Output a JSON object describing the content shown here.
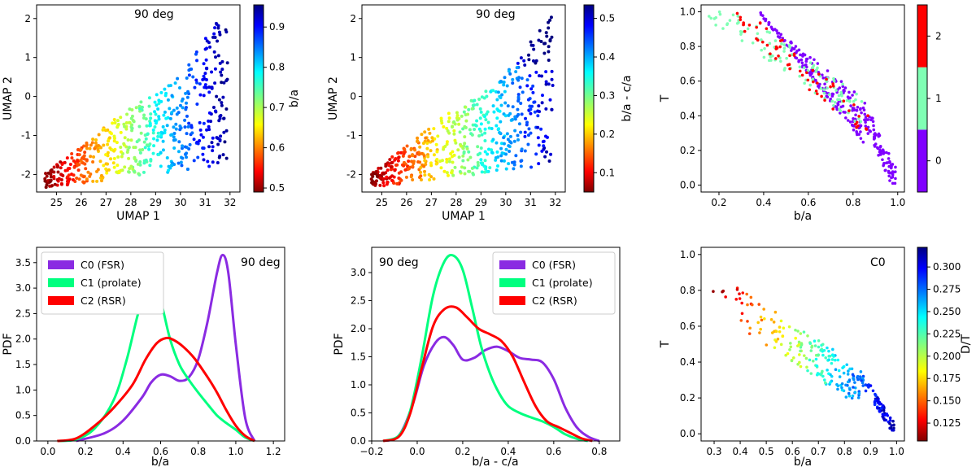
{
  "chart_data": [
    {
      "id": "umap-ba",
      "type": "scatter",
      "annotation": "90 deg",
      "xlabel": "UMAP 1",
      "ylabel": "UMAP 2",
      "xlim": [
        24.2,
        32.4
      ],
      "ylim": [
        -2.45,
        2.35
      ],
      "xticks": [
        25,
        26,
        27,
        28,
        29,
        30,
        31,
        32
      ],
      "yticks": [
        -2,
        -1,
        0,
        1,
        2
      ],
      "colorbar": {
        "label": "b/a",
        "range": [
          0.49,
          0.955
        ],
        "ticks": [
          "0.5",
          "0.6",
          "0.7",
          "0.8",
          "0.9"
        ],
        "cmap": "jet_r"
      },
      "points": {
        "n": 560,
        "x_range": [
          24.5,
          31.9
        ],
        "color_field": "b/a",
        "color_range": [
          0.5,
          0.95
        ],
        "seed": 11
      }
    },
    {
      "id": "umap-ba-ca",
      "type": "scatter",
      "annotation": "90 deg",
      "xlabel": "UMAP 1",
      "ylabel": "UMAP 2",
      "xlim": [
        24.2,
        32.4
      ],
      "ylim": [
        -2.45,
        2.35
      ],
      "xticks": [
        25,
        26,
        27,
        28,
        29,
        30,
        31,
        32
      ],
      "yticks": [
        -2,
        -1,
        0,
        1,
        2
      ],
      "colorbar": {
        "label": "b/a - c/a",
        "range": [
          0.05,
          0.535
        ],
        "ticks": [
          "0.1",
          "0.2",
          "0.3",
          "0.4",
          "0.5"
        ],
        "cmap": "jet_r"
      },
      "points": {
        "n": 560,
        "x_range": [
          24.5,
          31.9
        ],
        "color_field": "b/a - c/a",
        "color_range": [
          0.06,
          0.52
        ],
        "seed": 23
      }
    },
    {
      "id": "t-vs-ba-cluster",
      "type": "scatter",
      "xlabel": "b/a",
      "ylabel": "T",
      "xlim": [
        0.12,
        1.03
      ],
      "ylim": [
        -0.04,
        1.04
      ],
      "xticks": [
        "0.2",
        "0.4",
        "0.6",
        "0.8",
        "1.0"
      ],
      "yticks": [
        "0.0",
        "0.2",
        "0.4",
        "0.6",
        "0.8",
        "1.0"
      ],
      "colorbar": {
        "label": "",
        "categories": [
          "0",
          "1",
          "2"
        ],
        "colors": [
          "#8000ff",
          "#80ffb4",
          "#ff0000"
        ]
      },
      "clusters": [
        {
          "label": "0",
          "n": 260,
          "color": "#8000ff"
        },
        {
          "label": "1",
          "n": 110,
          "color": "#80ffb4"
        },
        {
          "label": "2",
          "n": 60,
          "color": "#ff0000"
        }
      ]
    },
    {
      "id": "pdf-ba",
      "type": "line",
      "annotation": "90 deg",
      "xlabel": "b/a",
      "ylabel": "PDF",
      "xlim": [
        -0.06,
        1.26
      ],
      "ylim": [
        0,
        3.8
      ],
      "xticks": [
        "0.0",
        "0.2",
        "0.4",
        "0.6",
        "0.8",
        "1.0",
        "1.2"
      ],
      "yticks": [
        "0.0",
        "0.5",
        "1.0",
        "1.5",
        "2.0",
        "2.5",
        "3.0",
        "3.5"
      ],
      "legend": "top-left",
      "series": [
        {
          "name": "C0 (FSR)",
          "color": "#8a2be2",
          "x": [
            0.15,
            0.3,
            0.4,
            0.5,
            0.55,
            0.6,
            0.65,
            0.7,
            0.75,
            0.8,
            0.85,
            0.9,
            0.93,
            0.96,
            1.0,
            1.05,
            1.1
          ],
          "y": [
            0,
            0.15,
            0.4,
            0.85,
            1.15,
            1.3,
            1.27,
            1.18,
            1.25,
            1.6,
            2.35,
            3.3,
            3.65,
            3.3,
            1.9,
            0.45,
            0
          ]
        },
        {
          "name": "C1 (prolate)",
          "color": "#00ff7f",
          "x": [
            0.05,
            0.15,
            0.25,
            0.35,
            0.42,
            0.48,
            0.52,
            0.56,
            0.6,
            0.65,
            0.7,
            0.75,
            0.8,
            0.85,
            0.9,
            0.95,
            1.0,
            1.05,
            1.1
          ],
          "y": [
            0,
            0.03,
            0.25,
            0.8,
            1.6,
            2.5,
            2.9,
            3.0,
            2.75,
            2.0,
            1.5,
            1.2,
            0.95,
            0.72,
            0.5,
            0.35,
            0.22,
            0.07,
            0
          ]
        },
        {
          "name": "C2 (RSR)",
          "color": "#ff0000",
          "x": [
            0.05,
            0.15,
            0.25,
            0.35,
            0.45,
            0.52,
            0.58,
            0.63,
            0.67,
            0.72,
            0.78,
            0.85,
            0.9,
            0.95,
            1.0,
            1.05,
            1.1
          ],
          "y": [
            0,
            0.05,
            0.3,
            0.65,
            1.1,
            1.6,
            1.92,
            2.02,
            1.98,
            1.85,
            1.62,
            1.25,
            0.95,
            0.6,
            0.3,
            0.1,
            0
          ]
        }
      ]
    },
    {
      "id": "pdf-ba-ca",
      "type": "line",
      "annotation": "90 deg",
      "xlabel": "b/a - c/a",
      "ylabel": "PDF",
      "xlim": [
        -0.2,
        0.89
      ],
      "ylim": [
        0,
        3.45
      ],
      "xticks": [
        "−0.2",
        "0.0",
        "0.2",
        "0.4",
        "0.6",
        "0.8"
      ],
      "yticks": [
        "0.0",
        "0.5",
        "1.0",
        "1.5",
        "2.0",
        "2.5",
        "3.0"
      ],
      "legend": "top-right",
      "series": [
        {
          "name": "C0 (FSR)",
          "color": "#8a2be2",
          "x": [
            -0.15,
            -0.08,
            -0.02,
            0.03,
            0.08,
            0.12,
            0.16,
            0.2,
            0.25,
            0.3,
            0.35,
            0.4,
            0.45,
            0.5,
            0.55,
            0.6,
            0.65,
            0.7,
            0.75,
            0.8
          ],
          "y": [
            0,
            0.1,
            0.65,
            1.35,
            1.75,
            1.85,
            1.7,
            1.45,
            1.48,
            1.62,
            1.68,
            1.6,
            1.48,
            1.45,
            1.4,
            1.1,
            0.6,
            0.25,
            0.08,
            0
          ]
        },
        {
          "name": "C1 (prolate)",
          "color": "#00ff7f",
          "x": [
            -0.15,
            -0.08,
            -0.03,
            0.02,
            0.07,
            0.12,
            0.16,
            0.2,
            0.24,
            0.28,
            0.32,
            0.36,
            0.4,
            0.45,
            0.5,
            0.55,
            0.6,
            0.65,
            0.7,
            0.75
          ],
          "y": [
            0,
            0.1,
            0.55,
            1.5,
            2.6,
            3.2,
            3.3,
            3.05,
            2.4,
            1.7,
            1.2,
            0.85,
            0.62,
            0.5,
            0.42,
            0.35,
            0.25,
            0.12,
            0.04,
            0
          ]
        },
        {
          "name": "C2 (RSR)",
          "color": "#ff0000",
          "x": [
            -0.15,
            -0.08,
            -0.03,
            0.02,
            0.07,
            0.12,
            0.17,
            0.22,
            0.27,
            0.32,
            0.37,
            0.42,
            0.47,
            0.52,
            0.57,
            0.62,
            0.67,
            0.72,
            0.77
          ],
          "y": [
            0,
            0.08,
            0.5,
            1.3,
            2.05,
            2.35,
            2.38,
            2.2,
            2.0,
            1.9,
            1.78,
            1.5,
            1.05,
            0.62,
            0.35,
            0.25,
            0.15,
            0.05,
            0
          ]
        }
      ]
    },
    {
      "id": "t-vs-ba-dt",
      "type": "scatter",
      "annotation": "C0",
      "xlabel": "b/a",
      "ylabel": "T",
      "xlim": [
        0.25,
        1.03
      ],
      "ylim": [
        -0.04,
        1.04
      ],
      "xticks": [
        "0.3",
        "0.4",
        "0.5",
        "0.6",
        "0.7",
        "0.8",
        "0.9",
        "1.0"
      ],
      "yticks": [
        "0.0",
        "0.2",
        "0.4",
        "0.6",
        "0.8",
        "1.0"
      ],
      "colorbar": {
        "label": "D/T",
        "range": [
          0.105,
          0.322
        ],
        "ticks": [
          "0.125",
          "0.150",
          "0.175",
          "0.200",
          "0.225",
          "0.250",
          "0.275",
          "0.300"
        ],
        "cmap": "jet_r"
      },
      "points": {
        "n": 260,
        "color_field": "D/T",
        "color_range": [
          0.11,
          0.315
        ],
        "seed": 41
      }
    }
  ]
}
